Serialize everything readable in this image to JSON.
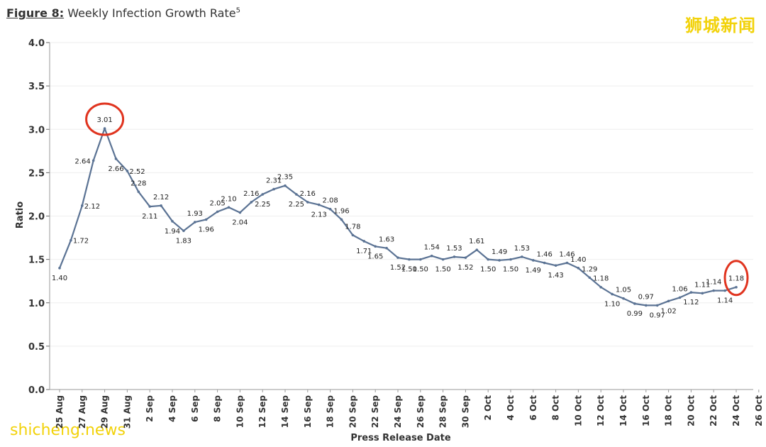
{
  "figure_label": "Figure 8:",
  "figure_title": "Weekly Infection Growth Rate",
  "figure_footnote": "5",
  "watermarks": {
    "top": "狮城新闻",
    "bottom": "shicheng.news"
  },
  "colors": {
    "line": "#5b7394",
    "highlight": "#e0341f",
    "watermark": "#f2d20a",
    "grid": "#eeeeee"
  },
  "chart_data": {
    "type": "line",
    "title": "Weekly Infection Growth Rate",
    "xlabel": "Press Release Date",
    "ylabel": "Ratio",
    "ylim": [
      0.0,
      4.0
    ],
    "yticks": [
      "0.0",
      "0.5",
      "1.0",
      "1.5",
      "2.0",
      "2.5",
      "3.0",
      "3.5",
      "4.0"
    ],
    "xtick_labels": [
      "25 Aug",
      "27 Aug",
      "29 Aug",
      "31 Aug",
      "2 Sep",
      "4 Sep",
      "6 Sep",
      "8 Sep",
      "10 Sep",
      "12 Sep",
      "14 Sep",
      "16 Sep",
      "18 Sep",
      "20 Sep",
      "22 Sep",
      "24 Sep",
      "26 Sep",
      "28 Sep",
      "30 Sep",
      "2 Oct",
      "4 Oct",
      "6 Oct",
      "8 Oct",
      "10 Oct",
      "12 Oct",
      "14 Oct",
      "16 Oct",
      "18 Oct",
      "20 Oct",
      "22 Oct",
      "24 Oct",
      "26 Oct"
    ],
    "values": [
      1.4,
      1.72,
      2.12,
      2.64,
      3.01,
      2.66,
      2.52,
      2.28,
      2.11,
      2.12,
      1.94,
      1.83,
      1.93,
      1.96,
      2.05,
      2.1,
      2.04,
      2.16,
      2.25,
      2.31,
      2.35,
      2.25,
      2.16,
      2.13,
      2.08,
      1.96,
      1.78,
      1.71,
      1.65,
      1.63,
      1.52,
      1.5,
      1.5,
      1.54,
      1.5,
      1.53,
      1.52,
      1.61,
      1.5,
      1.49,
      1.5,
      1.53,
      1.49,
      1.46,
      1.43,
      1.46,
      1.4,
      1.29,
      1.18,
      1.1,
      1.05,
      0.99,
      0.97,
      0.97,
      1.02,
      1.06,
      1.12,
      1.11,
      1.14,
      1.14,
      1.18
    ],
    "label_positions": [
      "below",
      "right",
      "right",
      "left",
      "above",
      "below",
      "right",
      "above",
      "below",
      "above",
      "below",
      "below",
      "above",
      "below",
      "above",
      "above",
      "below",
      "above",
      "below",
      "above",
      "above",
      "below",
      "above",
      "below",
      "above",
      "above",
      "above",
      "below",
      "below",
      "above",
      "below",
      "below",
      "below",
      "above",
      "below",
      "above",
      "below",
      "above",
      "below",
      "above",
      "below",
      "above",
      "below",
      "above",
      "below",
      "above",
      "above",
      "above",
      "above",
      "below",
      "above",
      "below",
      "above",
      "below",
      "below",
      "above",
      "below",
      "above",
      "above",
      "below",
      "above"
    ],
    "highlighted_points": [
      4,
      60
    ],
    "grid": true
  }
}
